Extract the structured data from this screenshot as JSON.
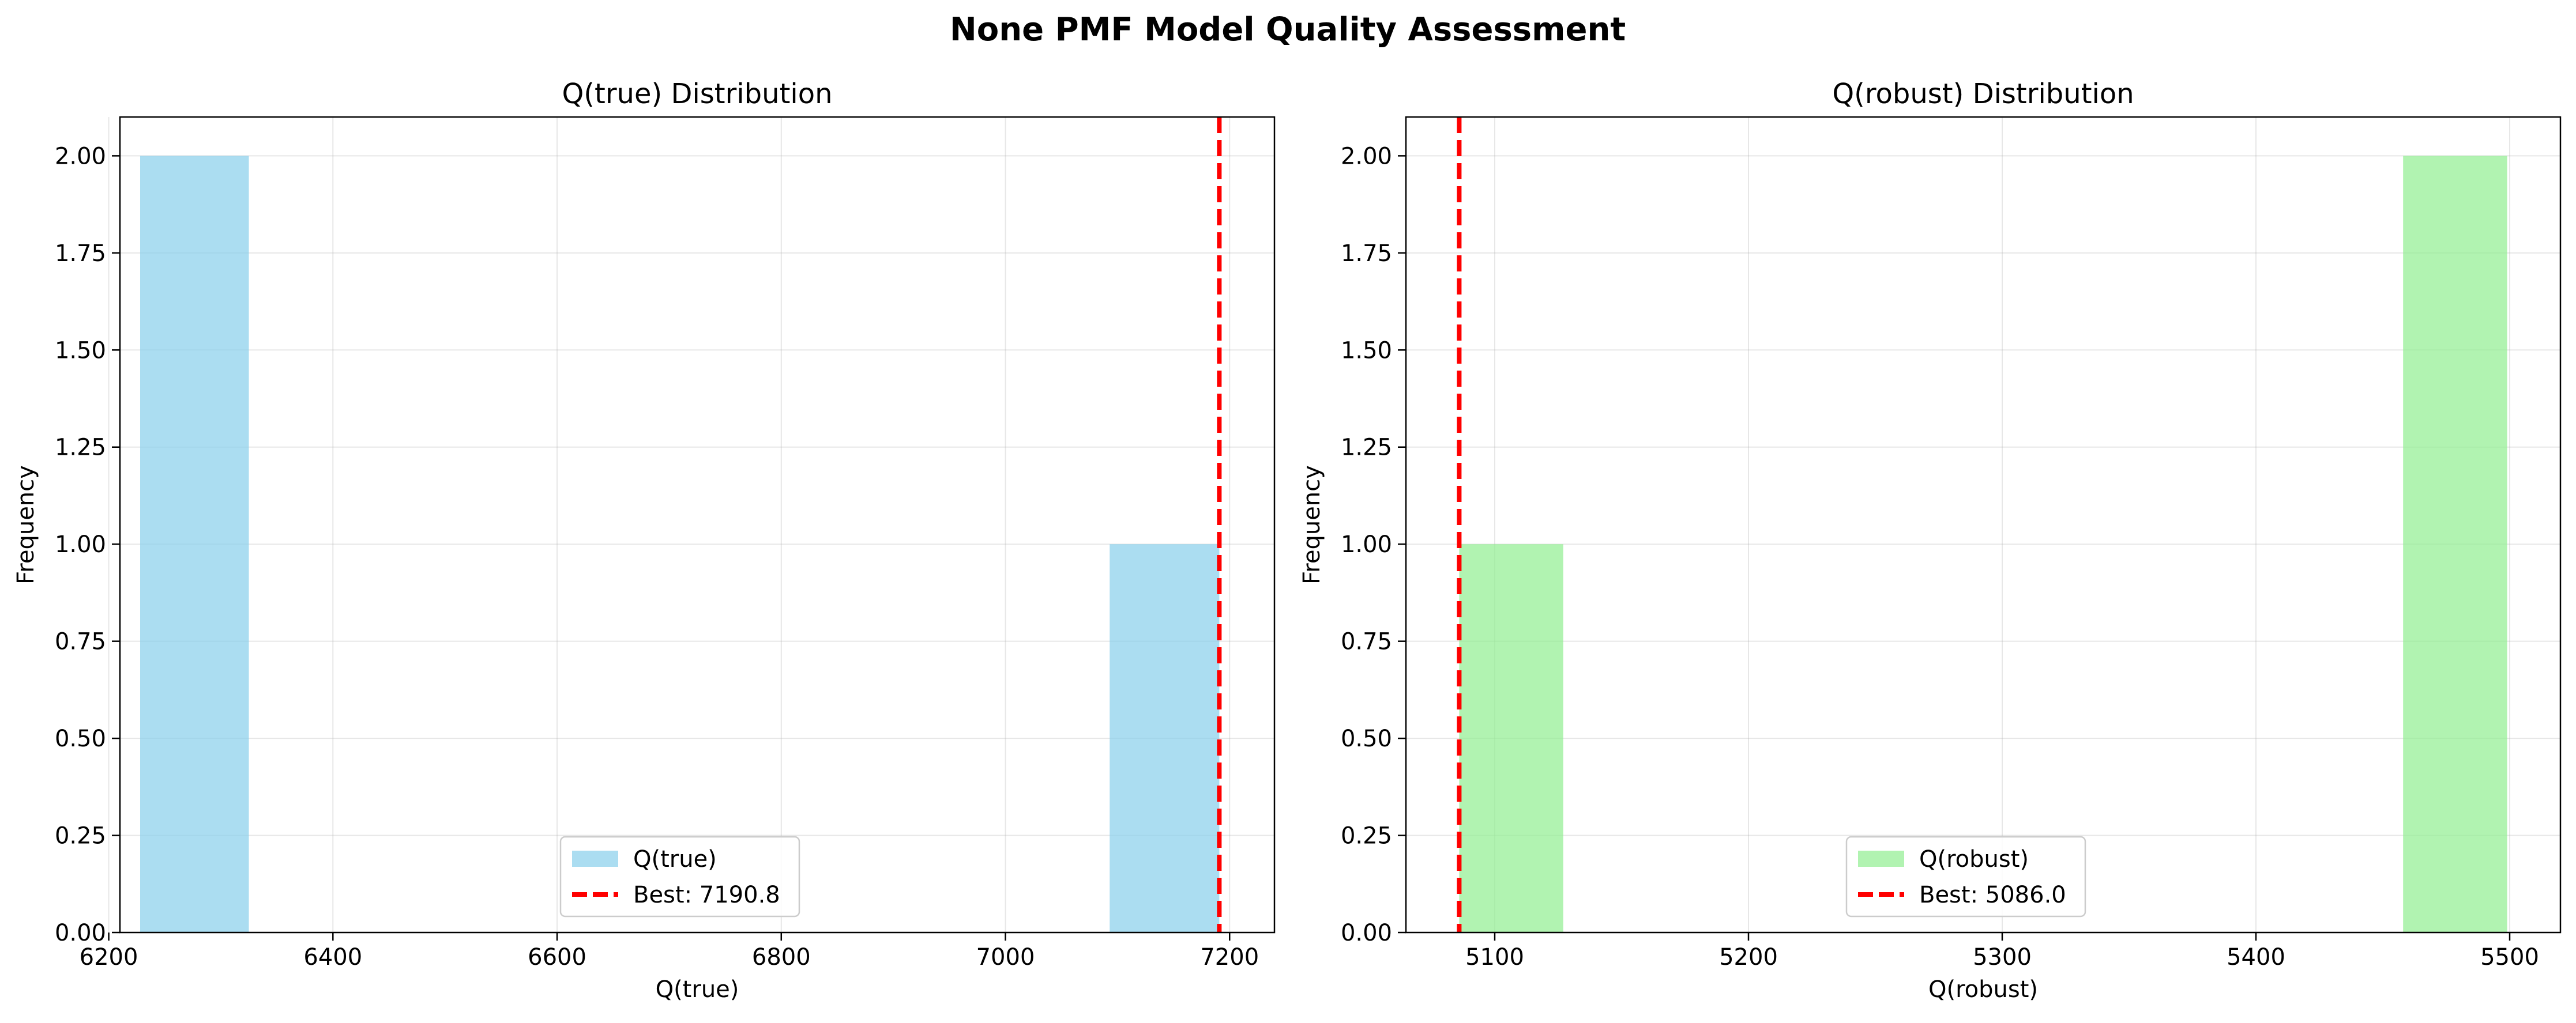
{
  "figure": {
    "suptitle": "None PMF Model Quality Assessment"
  },
  "chart_data": [
    {
      "type": "bar",
      "title": "Q(true) Distribution",
      "xlabel": "Q(true)",
      "ylabel": "Frequency",
      "xlim": [
        6210,
        7240
      ],
      "ylim": [
        0,
        2.1
      ],
      "xticks": [
        6200,
        6400,
        6600,
        6800,
        7000,
        7200
      ],
      "yticks": [
        "0.00",
        "0.25",
        "0.50",
        "0.75",
        "1.00",
        "1.25",
        "1.50",
        "1.75",
        "2.00"
      ],
      "grid": true,
      "bars": [
        {
          "x0": 6228,
          "x1": 6325,
          "value": 2
        },
        {
          "x0": 7093,
          "x1": 7190.8,
          "value": 1
        }
      ],
      "bar_color": "#87ceeb",
      "reference_line": {
        "x": 7190.8,
        "color": "#ff0000",
        "style": "dashed"
      },
      "legend": {
        "placement": "lower-center",
        "entries": [
          {
            "label": "Q(true)",
            "kind": "patch",
            "color": "#87ceeb"
          },
          {
            "label": "Best: 7190.8",
            "kind": "dashed-line",
            "color": "#ff0000"
          }
        ]
      }
    },
    {
      "type": "bar",
      "title": "Q(robust) Distribution",
      "xlabel": "Q(robust)",
      "ylabel": "Frequency",
      "xlim": [
        5065,
        5520
      ],
      "ylim": [
        0,
        2.1
      ],
      "xticks": [
        5100,
        5200,
        5300,
        5400,
        5500
      ],
      "yticks": [
        "0.00",
        "0.25",
        "0.50",
        "0.75",
        "1.00",
        "1.25",
        "1.50",
        "1.75",
        "2.00"
      ],
      "grid": true,
      "bars": [
        {
          "x0": 5086,
          "x1": 5127,
          "value": 1
        },
        {
          "x0": 5458,
          "x1": 5499,
          "value": 2
        }
      ],
      "bar_color": "#90ee90",
      "reference_line": {
        "x": 5086.0,
        "color": "#ff0000",
        "style": "dashed"
      },
      "legend": {
        "placement": "lower-center",
        "entries": [
          {
            "label": "Q(robust)",
            "kind": "patch",
            "color": "#90ee90"
          },
          {
            "label": "Best: 5086.0",
            "kind": "dashed-line",
            "color": "#ff0000"
          }
        ]
      }
    }
  ]
}
